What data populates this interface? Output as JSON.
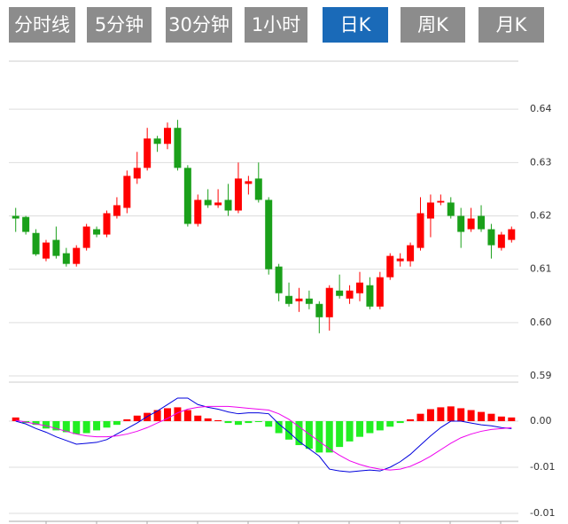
{
  "tabs": [
    "分时线",
    "5分钟",
    "30分钟",
    "1小时",
    "日K",
    "周K",
    "月K"
  ],
  "selected_tab": 4,
  "tab_color": "#8c8c8c",
  "selected_tab_color": "#1a6ab8",
  "chart_data": [
    {
      "type": "candlestick",
      "up_color": "#ff0000",
      "down_color": "#1aa01a",
      "grid": true,
      "ylim": [
        0.59,
        0.649
      ],
      "yticks": [
        0.59,
        {
          "value": 0.6,
          "label": "0.60"
        },
        0.61,
        0.62,
        0.63,
        0.64
      ],
      "open": [
        0.62,
        0.6198,
        0.6168,
        0.612,
        0.6155,
        0.613,
        0.611,
        0.614,
        0.6175,
        0.6165,
        0.62,
        0.6215,
        0.627,
        0.629,
        0.6345,
        0.6335,
        0.6365,
        0.629,
        0.6185,
        0.623,
        0.622,
        0.623,
        0.621,
        0.626,
        0.627,
        0.623,
        0.6105,
        0.605,
        0.604,
        0.6045,
        0.6035,
        0.601,
        0.606,
        0.6045,
        0.6055,
        0.607,
        0.603,
        0.6085,
        0.6115,
        0.6115,
        0.614,
        0.6195,
        0.6225,
        0.6225,
        0.62,
        0.6175,
        0.62,
        0.6175,
        0.614,
        0.6155
      ],
      "high": [
        0.6215,
        0.62,
        0.6175,
        0.6155,
        0.618,
        0.614,
        0.6145,
        0.6185,
        0.618,
        0.621,
        0.6235,
        0.6285,
        0.632,
        0.6365,
        0.635,
        0.6375,
        0.638,
        0.6295,
        0.624,
        0.625,
        0.625,
        0.626,
        0.63,
        0.6275,
        0.63,
        0.6235,
        0.611,
        0.6075,
        0.6065,
        0.606,
        0.604,
        0.607,
        0.609,
        0.607,
        0.6095,
        0.6085,
        0.6095,
        0.613,
        0.613,
        0.615,
        0.6235,
        0.624,
        0.624,
        0.6235,
        0.6215,
        0.6215,
        0.622,
        0.6185,
        0.617,
        0.618
      ],
      "low": [
        0.617,
        0.6165,
        0.6125,
        0.6115,
        0.612,
        0.6105,
        0.6105,
        0.6135,
        0.616,
        0.616,
        0.6195,
        0.6205,
        0.626,
        0.6285,
        0.632,
        0.6325,
        0.6285,
        0.618,
        0.618,
        0.6215,
        0.6215,
        0.62,
        0.6205,
        0.624,
        0.6225,
        0.609,
        0.604,
        0.603,
        0.602,
        0.6025,
        0.598,
        0.5985,
        0.6045,
        0.6035,
        0.604,
        0.6025,
        0.6025,
        0.608,
        0.6105,
        0.6105,
        0.6135,
        0.616,
        0.622,
        0.6195,
        0.614,
        0.617,
        0.617,
        0.612,
        0.6135,
        0.615
      ],
      "close": [
        0.6195,
        0.617,
        0.6128,
        0.615,
        0.6125,
        0.611,
        0.614,
        0.618,
        0.6165,
        0.6205,
        0.622,
        0.6275,
        0.629,
        0.6345,
        0.6335,
        0.6365,
        0.629,
        0.6185,
        0.623,
        0.622,
        0.6225,
        0.621,
        0.627,
        0.6265,
        0.623,
        0.61,
        0.6055,
        0.6035,
        0.6045,
        0.6035,
        0.601,
        0.6065,
        0.605,
        0.606,
        0.6075,
        0.603,
        0.6085,
        0.6125,
        0.612,
        0.6145,
        0.6205,
        0.6225,
        0.6228,
        0.62,
        0.617,
        0.6195,
        0.6175,
        0.6145,
        0.6165,
        0.6175
      ]
    },
    {
      "type": "macd",
      "up_color": "#ff0000",
      "down_color": "#22ee22",
      "grid": true,
      "ylim": [
        -0.011,
        0.0035
      ],
      "yticks": [
        {
          "value": 0,
          "label": "0.00"
        },
        {
          "value": -0.005,
          "label": "-0.01"
        },
        {
          "value": -0.01,
          "label": "-0.01"
        }
      ],
      "values": [
        0.0004,
        -0.0002,
        -0.0004,
        -0.0008,
        -0.001,
        -0.0012,
        -0.0014,
        -0.0013,
        -0.001,
        -0.0007,
        -0.0004,
        0.0002,
        0.0006,
        0.0009,
        0.0012,
        0.0014,
        0.0015,
        0.0012,
        0.0006,
        0.0003,
        0.0001,
        -0.0002,
        -0.0004,
        -0.0002,
        -0.0001,
        -0.0006,
        -0.0013,
        -0.002,
        -0.0026,
        -0.003,
        -0.0034,
        -0.0034,
        -0.0028,
        -0.0022,
        -0.0017,
        -0.0013,
        -0.001,
        -0.0006,
        -0.0002,
        0.0002,
        0.0008,
        0.0013,
        0.0015,
        0.0016,
        0.0014,
        0.0012,
        0.001,
        0.0008,
        0.0005,
        0.0004
      ],
      "series": [
        {
          "color": "#0000dd",
          "values": [
            0,
            -0.0003,
            -0.0008,
            -0.0012,
            -0.0017,
            -0.0021,
            -0.0025,
            -0.0024,
            -0.0023,
            -0.002,
            -0.0014,
            -0.0008,
            -0.0002,
            0.0005,
            0.0011,
            0.0018,
            0.0025,
            0.0025,
            0.0018,
            0.0015,
            0.0013,
            0.001,
            0.0008,
            0.0009,
            0.0009,
            0.0008,
            -0.0003,
            -0.0012,
            -0.0022,
            -0.003,
            -0.0038,
            -0.0052,
            -0.0054,
            -0.0055,
            -0.0054,
            -0.0053,
            -0.0054,
            -0.005,
            -0.0044,
            -0.0036,
            -0.0026,
            -0.0016,
            -0.0007,
            0,
            0,
            -0.0002,
            -0.0004,
            -0.0005,
            -0.0007,
            -0.0008
          ]
        },
        {
          "color": "#ee00ee",
          "values": [
            0.0001,
            -0.0001,
            -0.0003,
            -0.0005,
            -0.0008,
            -0.0011,
            -0.0014,
            -0.0016,
            -0.0017,
            -0.0017,
            -0.0016,
            -0.0014,
            -0.0011,
            -0.0007,
            -0.0002,
            0.0003,
            0.0009,
            0.0013,
            0.0015,
            0.0016,
            0.0016,
            0.0016,
            0.0015,
            0.0014,
            0.0013,
            0.0012,
            0.0008,
            0.0002,
            -0.0006,
            -0.0014,
            -0.0022,
            -0.003,
            -0.0037,
            -0.0043,
            -0.0047,
            -0.005,
            -0.0052,
            -0.0053,
            -0.0052,
            -0.0049,
            -0.0044,
            -0.0038,
            -0.0031,
            -0.0024,
            -0.0018,
            -0.0014,
            -0.0011,
            -0.0009,
            -0.0008,
            -0.0007
          ]
        }
      ]
    }
  ]
}
